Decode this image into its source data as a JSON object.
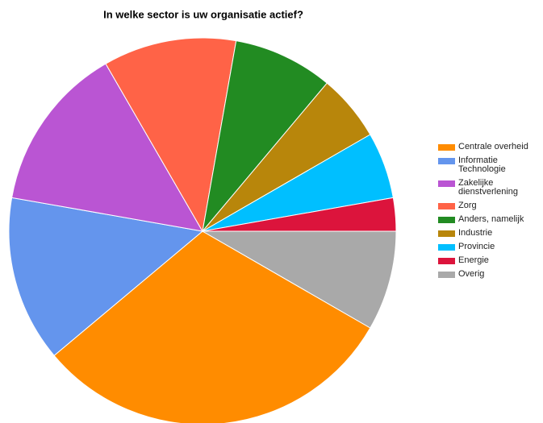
{
  "chart_data": {
    "type": "pie",
    "title": "In welke sector is uw organisatie actief?",
    "categories": [
      "Centrale overheid",
      "Informatie Technologie",
      "Zakelijke dienstverlening",
      "Zorg",
      "Anders, namelijk",
      "Industrie",
      "Provincie",
      "Energie",
      "Overig"
    ],
    "values": [
      11,
      5,
      5,
      4,
      3,
      2,
      2,
      1,
      3
    ],
    "colors": [
      "#ff8c00",
      "#6495ed",
      "#ba55d3",
      "#ff6347",
      "#228b22",
      "#b8860b",
      "#00bfff",
      "#dc143c",
      "#a9a9a9"
    ],
    "legend": "right"
  }
}
